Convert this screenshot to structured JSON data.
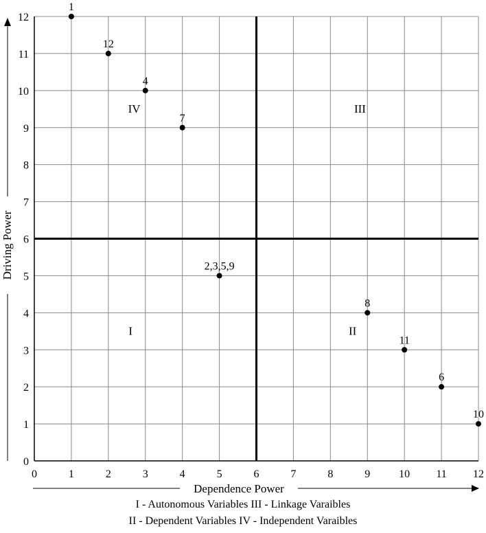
{
  "chart_data": {
    "type": "scatter",
    "title": "",
    "xlabel": "Dependence Power",
    "ylabel": "Driving Power",
    "xlim": [
      0,
      12
    ],
    "ylim": [
      0,
      12
    ],
    "xticks": [
      0,
      1,
      2,
      3,
      4,
      5,
      6,
      7,
      8,
      9,
      10,
      11,
      12
    ],
    "yticks": [
      0,
      1,
      2,
      3,
      4,
      5,
      6,
      7,
      8,
      9,
      10,
      11,
      12
    ],
    "grid": true,
    "divider": {
      "x": 6,
      "y": 6
    },
    "points": [
      {
        "x": 1,
        "y": 12,
        "label": "1"
      },
      {
        "x": 2,
        "y": 11,
        "label": "12"
      },
      {
        "x": 3,
        "y": 10,
        "label": "4"
      },
      {
        "x": 4,
        "y": 9,
        "label": "7"
      },
      {
        "x": 5,
        "y": 5,
        "label": "2,3,5,9"
      },
      {
        "x": 9,
        "y": 4,
        "label": "8"
      },
      {
        "x": 10,
        "y": 3,
        "label": "11"
      },
      {
        "x": 11,
        "y": 2,
        "label": "6"
      },
      {
        "x": 12,
        "y": 1,
        "label": "10"
      }
    ],
    "quadrants": [
      {
        "label": "IV",
        "x": 2.7,
        "y": 9.4
      },
      {
        "label": "III",
        "x": 8.8,
        "y": 9.4
      },
      {
        "label": "I",
        "x": 2.6,
        "y": 3.4
      },
      {
        "label": "II",
        "x": 8.6,
        "y": 3.4
      }
    ],
    "legend": {
      "line1": "I - Autonomous Variables III - Linkage Varaibles",
      "line2": "II - Dependent Variables IV - Independent Varaibles"
    }
  }
}
